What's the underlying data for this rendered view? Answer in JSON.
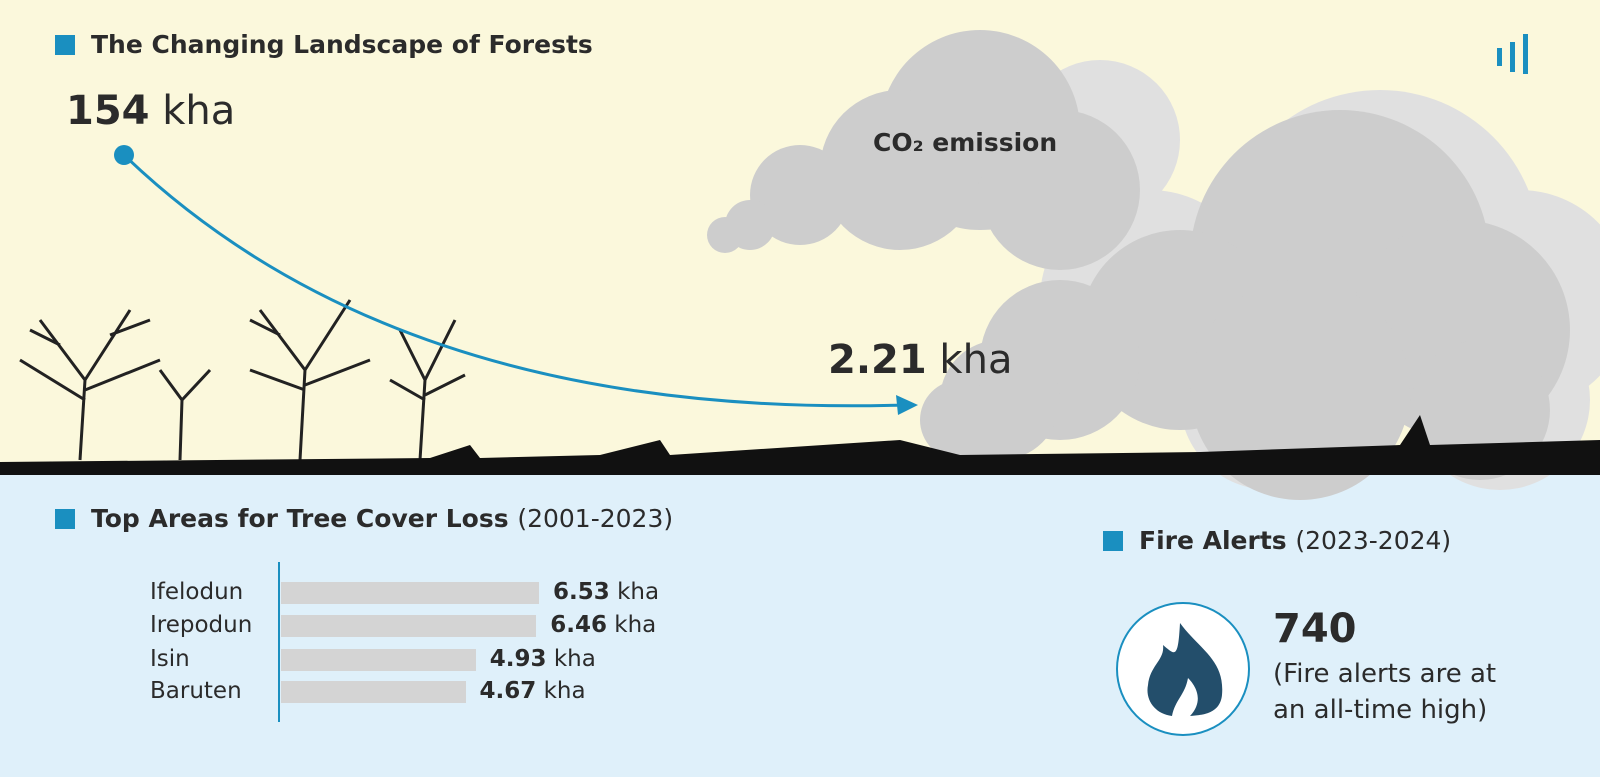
{
  "header": {
    "title": "The Changing Landscape of Forests"
  },
  "landscape": {
    "start": {
      "value": 154,
      "unit": "kha"
    },
    "end": {
      "value": 2.21,
      "unit": "kha"
    },
    "cloud_label": "CO₂ emission"
  },
  "chart_data": {
    "type": "bar",
    "orientation": "horizontal",
    "title": "Top Areas for Tree Cover Loss",
    "subtitle": "(2001-2023)",
    "categories": [
      "Ifelodun",
      "Irepodun",
      "Isin",
      "Baruten"
    ],
    "values": [
      6.53,
      6.46,
      4.93,
      4.67
    ],
    "unit": "kha",
    "color": "#d4d4d4"
  },
  "fire_alerts": {
    "title": "Fire Alerts",
    "period": "(2023-2024)",
    "count": 740,
    "note": "(Fire alerts are at an all-time high)"
  }
}
